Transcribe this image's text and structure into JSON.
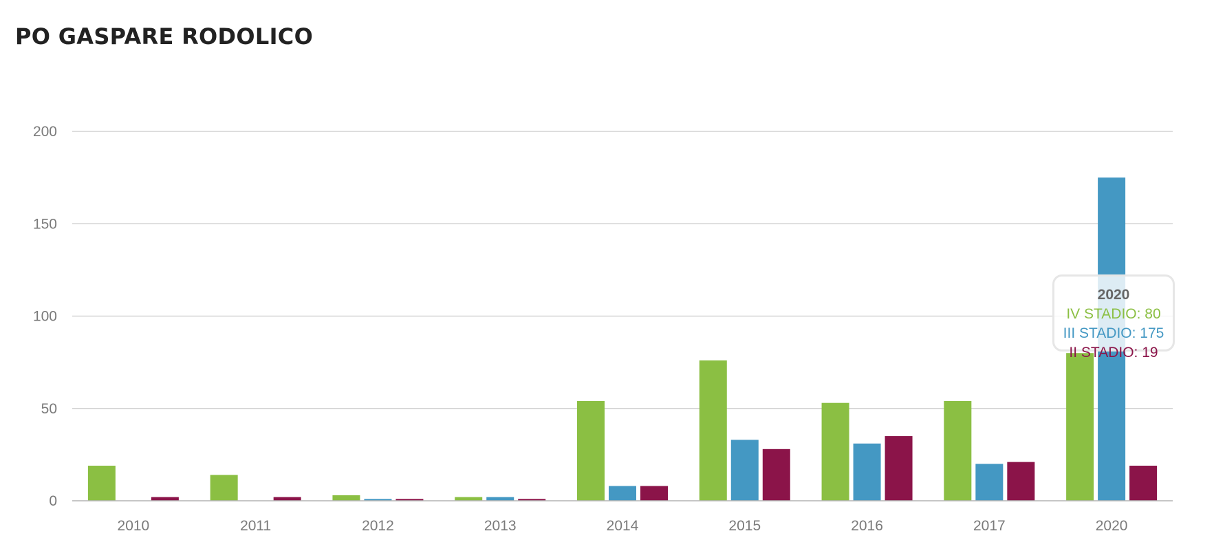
{
  "page": {
    "title": "PO GASPARE RODOLICO"
  },
  "chart_data": {
    "type": "bar",
    "title": "PO GASPARE RODOLICO",
    "xlabel": "",
    "ylabel": "",
    "categories": [
      "2010",
      "2011",
      "2012",
      "2013",
      "2014",
      "2015",
      "2016",
      "2017",
      "2020"
    ],
    "ylim": [
      0,
      200
    ],
    "yticks": [
      0,
      50,
      100,
      150,
      200
    ],
    "grid": true,
    "legend": "none",
    "series": [
      {
        "name": "IV STADIO",
        "color": "#8bbf43",
        "values": [
          19,
          14,
          3,
          2,
          54,
          76,
          53,
          54,
          80
        ]
      },
      {
        "name": "III STADIO",
        "color": "#4498c3",
        "values": [
          0,
          0,
          1,
          2,
          8,
          33,
          31,
          20,
          175
        ]
      },
      {
        "name": "II STADIO",
        "color": "#8b1449",
        "values": [
          2,
          2,
          1,
          1,
          8,
          28,
          35,
          21,
          19
        ]
      }
    ],
    "tooltip": {
      "category": "2020",
      "rows": [
        {
          "label": "IV STADIO: 80",
          "color": "#8bbf43"
        },
        {
          "label": "III STADIO: 175",
          "color": "#4498c3"
        },
        {
          "label": "II STADIO: 19",
          "color": "#8b1449"
        }
      ]
    }
  }
}
